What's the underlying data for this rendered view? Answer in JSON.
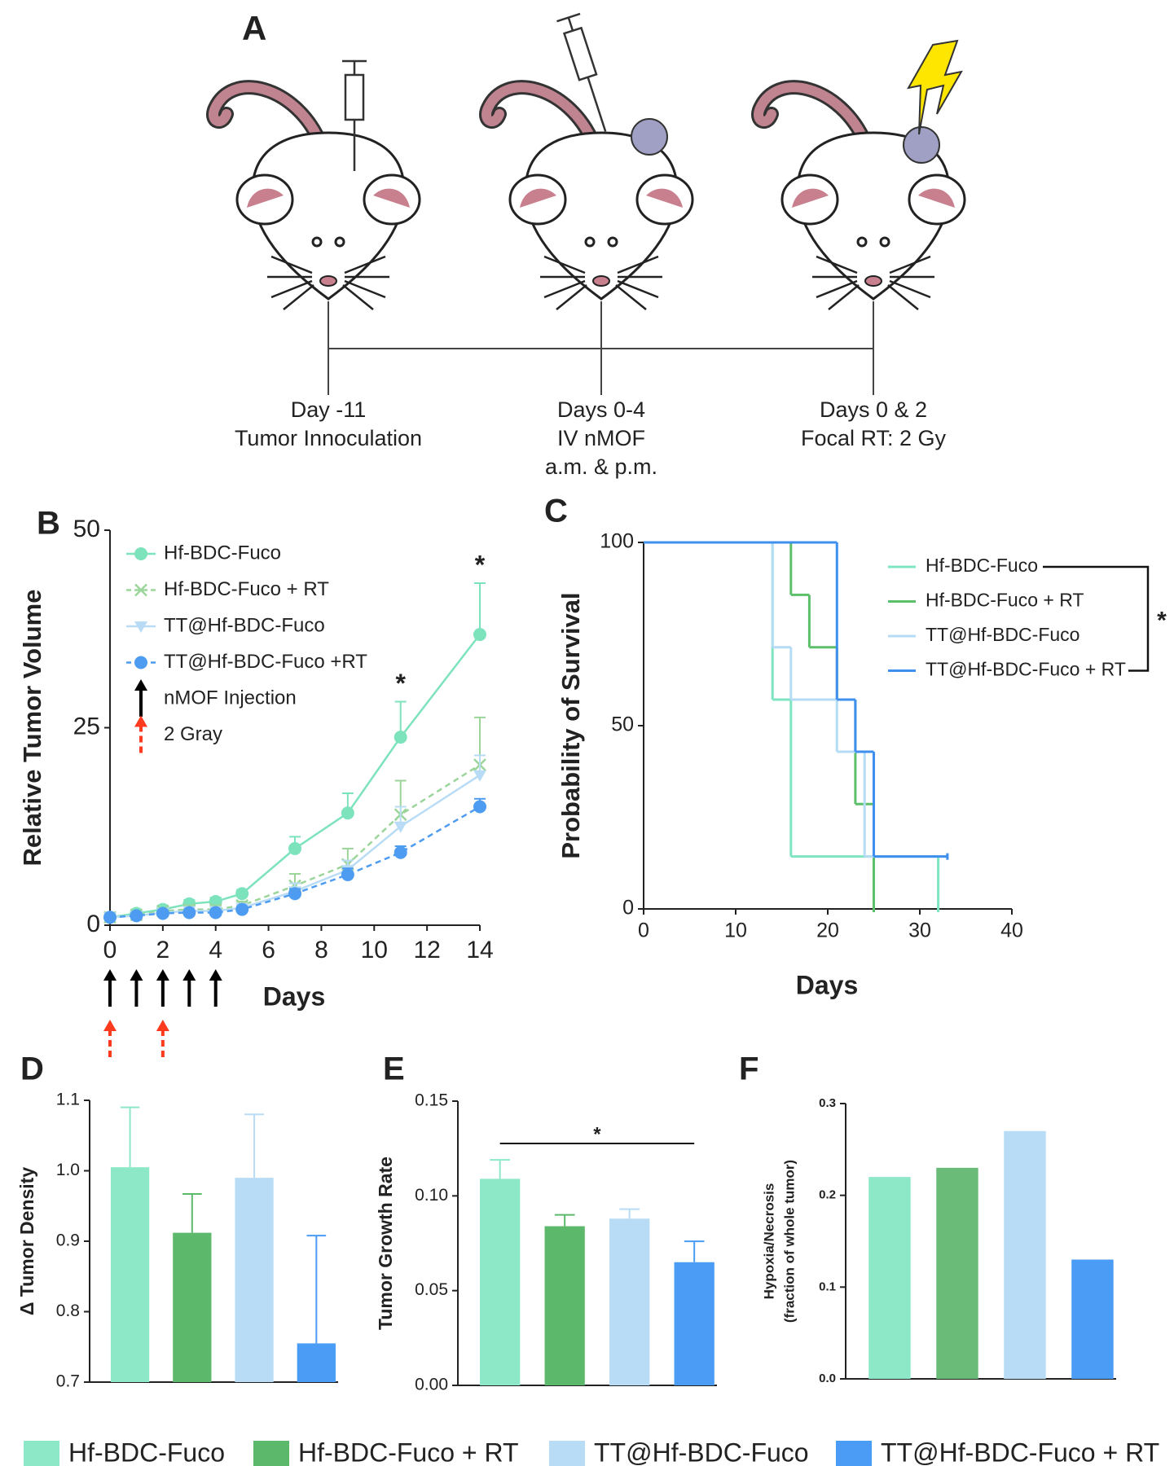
{
  "diagram": {
    "label": "A",
    "events": [
      {
        "lines": [
          "Day -11",
          "Tumor Innoculation"
        ]
      },
      {
        "lines": [
          "Days 0-4",
          "IV nMOF",
          "a.m. & p.m."
        ]
      },
      {
        "lines": [
          "Days 0 & 2",
          "Focal RT: 2 Gy"
        ]
      }
    ]
  },
  "chart_data": [
    {
      "type": "line",
      "panel": "B",
      "xlabel": "Days",
      "ylabel": "Relative Tumor Volume",
      "x": [
        0,
        1,
        2,
        3,
        4,
        5,
        7,
        9,
        11,
        14
      ],
      "xlim": [
        0,
        14
      ],
      "xticks": [
        0,
        2,
        4,
        6,
        8,
        10,
        12,
        14
      ],
      "ylim": [
        0,
        50
      ],
      "yticks": [
        0,
        25,
        50
      ],
      "series": [
        {
          "name": "Hf-BDC-Fuco",
          "color": "#7de3bd",
          "marker": "circle",
          "dashed": false,
          "values": [
            1,
            1.5,
            2,
            2.7,
            3,
            4,
            9.7,
            14.2,
            23.8,
            36.8
          ],
          "errors": [
            0.3,
            0.5,
            0.5,
            0.5,
            0.5,
            0.5,
            1.5,
            2.5,
            4.5,
            6.5
          ]
        },
        {
          "name": "Hf-BDC-Fuco + RT",
          "color": "#9bd59a",
          "marker": "x",
          "dashed": true,
          "values": [
            1,
            1.3,
            1.8,
            2,
            2,
            2.5,
            5,
            7.7,
            14,
            20.3
          ],
          "errors": [
            0.3,
            0.3,
            0.3,
            0.5,
            0.5,
            0.5,
            1.5,
            2,
            4.3,
            6
          ]
        },
        {
          "name": "TT@Hf-BDC-Fuco",
          "color": "#b9dcf6",
          "marker": "triangle",
          "dashed": false,
          "values": [
            1,
            1.2,
            1.6,
            1.8,
            1.8,
            2.2,
            4.3,
            7,
            12.5,
            19
          ],
          "errors": [
            0.3,
            0.3,
            0.3,
            0.3,
            0.3,
            0.4,
            1,
            1.2,
            2.5,
            2.5
          ]
        },
        {
          "name": "TT@Hf-BDC-Fuco +RT",
          "color": "#4d9cf2",
          "marker": "circle",
          "dashed": true,
          "values": [
            1,
            1.2,
            1.5,
            1.6,
            1.6,
            2,
            4,
            6.4,
            9.2,
            15
          ],
          "errors": [
            0.2,
            0.2,
            0.2,
            0.3,
            0.3,
            0.3,
            0.6,
            0.8,
            0.8,
            1
          ]
        }
      ],
      "markers": [
        {
          "name": "nMOF Injection",
          "color": "#000000",
          "days": [
            0,
            1,
            2,
            3,
            4
          ]
        },
        {
          "name": "2 Gray",
          "color": "#ff3b1f",
          "days": [
            0,
            2
          ]
        }
      ],
      "annotations": [
        {
          "text": "*",
          "x": 11
        },
        {
          "text": "*",
          "x": 14
        }
      ]
    },
    {
      "type": "step",
      "panel": "C",
      "xlabel": "Days",
      "ylabel": "Probability of Survival",
      "xlim": [
        0,
        40
      ],
      "xticks": [
        0,
        10,
        20,
        30,
        40
      ],
      "ylim": [
        0,
        100
      ],
      "yticks": [
        0,
        50,
        100
      ],
      "legend": "upper right",
      "significance": "*",
      "series": [
        {
          "name": "Hf-BDC-Fuco",
          "color": "#7fe5c1",
          "x": [
            0,
            14,
            16,
            32
          ],
          "values": [
            100,
            57.1,
            14.3,
            0
          ]
        },
        {
          "name": "Hf-BDC-Fuco + RT",
          "color": "#5cbf6a",
          "x": [
            0,
            16,
            18,
            21,
            23,
            25
          ],
          "values": [
            100,
            85.7,
            71.4,
            57.1,
            28.6,
            0
          ]
        },
        {
          "name": "TT@Hf-BDC-Fuco",
          "color": "#b5dcf5",
          "x": [
            0,
            14,
            16,
            21,
            24,
            33
          ],
          "values": [
            100,
            71.4,
            57.1,
            42.9,
            14.3,
            14.3
          ]
        },
        {
          "name": "TT@Hf-BDC-Fuco + RT",
          "color": "#3f8fef",
          "x": [
            0,
            21,
            23,
            25,
            33
          ],
          "values": [
            100,
            57.1,
            42.9,
            14.3,
            14.3
          ]
        }
      ]
    },
    {
      "type": "bar",
      "panel": "D",
      "ylabel": "Δ Tumor Density",
      "categories": [
        null,
        null,
        null,
        null
      ],
      "values": [
        1.005,
        0.912,
        0.99,
        0.755
      ],
      "errors": [
        0.085,
        0.055,
        0.09,
        0.153
      ],
      "colors": [
        "#8de8c8",
        "#5cb96c",
        "#b8dcf5",
        "#4a9cf4"
      ],
      "ylim": [
        0.7,
        1.1
      ],
      "yticks": [
        0.7,
        0.8,
        0.9,
        {
          "value": 1,
          "label": "1.0"
        },
        1.1
      ]
    },
    {
      "type": "bar",
      "panel": "E",
      "ylabel": "Tumor Growth Rate",
      "significance": "*",
      "categories": [
        null,
        null,
        null,
        null
      ],
      "values": [
        0.109,
        0.084,
        0.088,
        0.065
      ],
      "errors": [
        0.01,
        0.006,
        0.005,
        0.011
      ],
      "colors": [
        "#8de8c8",
        "#5cb96c",
        "#b8dcf5",
        "#4a9cf4"
      ],
      "ylim": [
        0,
        0.15
      ],
      "yticks": [
        {
          "value": 0,
          "label": "0.00"
        },
        {
          "value": 0.05,
          "label": "0.05"
        },
        {
          "value": 0.1,
          "label": "0.10"
        },
        0.15
      ]
    },
    {
      "type": "bar",
      "panel": "F",
      "ylabel": [
        "Hypoxia/Necrosis",
        "(fraction of whole tumor)"
      ],
      "categories": [
        null,
        null,
        null,
        null
      ],
      "values": [
        0.22,
        0.23,
        0.27,
        0.13
      ],
      "colors": [
        "#8de8c8",
        "#6bbb78",
        "#b8dcf5",
        "#4a9cf4"
      ],
      "ylim": [
        0,
        0.3
      ],
      "yticks": [
        {
          "value": 0,
          "label": "0.0"
        },
        0.1,
        0.2,
        0.3
      ]
    }
  ],
  "legend": {
    "entries": [
      {
        "name": "Hf-BDC-Fuco",
        "color": "#8de8c8"
      },
      {
        "name": "Hf-BDC-Fuco + RT",
        "color": "#5cb96c"
      },
      {
        "name": "TT@Hf-BDC-Fuco",
        "color": "#b8dcf5"
      },
      {
        "name": "TT@Hf-BDC-Fuco + RT",
        "color": "#4a9cf4"
      }
    ]
  }
}
